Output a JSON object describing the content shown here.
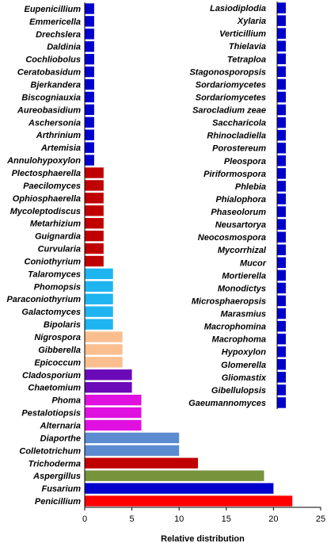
{
  "chart_data": {
    "type": "bar",
    "orientation": "horizontal",
    "xlabel": "Relative distribution",
    "xlim": [
      0,
      25
    ],
    "xticks": [
      0,
      5,
      10,
      15,
      20,
      25
    ],
    "grid": false,
    "main": [
      {
        "name": "Eupenicillium",
        "value": 1,
        "color": "#0000cc"
      },
      {
        "name": "Emmericella",
        "value": 1,
        "color": "#0000cc"
      },
      {
        "name": "Drechslera",
        "value": 1,
        "color": "#0000cc"
      },
      {
        "name": "Daldinia",
        "value": 1,
        "color": "#0000cc"
      },
      {
        "name": "Cochliobolus",
        "value": 1,
        "color": "#0000cc"
      },
      {
        "name": "Ceratobasidum",
        "value": 1,
        "color": "#0000cc"
      },
      {
        "name": "Bjerkandera",
        "value": 1,
        "color": "#0000cc"
      },
      {
        "name": "Biscogniauxia",
        "value": 1,
        "color": "#0000cc"
      },
      {
        "name": "Aureobasidium",
        "value": 1,
        "color": "#0000cc"
      },
      {
        "name": "Aschersonia",
        "value": 1,
        "color": "#0000cc"
      },
      {
        "name": "Arthrinium",
        "value": 1,
        "color": "#0000cc"
      },
      {
        "name": "Artemisia",
        "value": 1,
        "color": "#0000cc"
      },
      {
        "name": "Annulohypoxylon",
        "value": 1,
        "color": "#0000cc"
      },
      {
        "name": "Plectosphaerella",
        "value": 2,
        "color": "#c00000"
      },
      {
        "name": "Paecilomyces",
        "value": 2,
        "color": "#c00000"
      },
      {
        "name": "Ophiosphaerella",
        "value": 2,
        "color": "#c00000"
      },
      {
        "name": "Mycoleptodiscus",
        "value": 2,
        "color": "#c00000"
      },
      {
        "name": "Metarhizium",
        "value": 2,
        "color": "#c00000"
      },
      {
        "name": "Guignardia",
        "value": 2,
        "color": "#c00000"
      },
      {
        "name": "Curvularia",
        "value": 2,
        "color": "#c00000"
      },
      {
        "name": "Coniothyrium",
        "value": 2,
        "color": "#c00000"
      },
      {
        "name": "Talaromyces",
        "value": 3,
        "color": "#1eb4f0"
      },
      {
        "name": "Phomopsis",
        "value": 3,
        "color": "#1eb4f0"
      },
      {
        "name": "Paraconiothyrium",
        "value": 3,
        "color": "#1eb4f0"
      },
      {
        "name": "Galactomyces",
        "value": 3,
        "color": "#1eb4f0"
      },
      {
        "name": "Bipolaris",
        "value": 3,
        "color": "#1eb4f0"
      },
      {
        "name": "Nigrospora",
        "value": 4,
        "color": "#fbbf8f"
      },
      {
        "name": "Gibberella",
        "value": 4,
        "color": "#fbbf8f"
      },
      {
        "name": "Epicoccum",
        "value": 4,
        "color": "#fbbf8f"
      },
      {
        "name": "Cladosporium",
        "value": 5,
        "color": "#6a0ab8"
      },
      {
        "name": "Chaetomium",
        "value": 5,
        "color": "#6a0ab8"
      },
      {
        "name": "Phoma",
        "value": 6,
        "color": "#e010e0"
      },
      {
        "name": "Pestalotiopsis",
        "value": 6,
        "color": "#e010e0"
      },
      {
        "name": "Alternaria",
        "value": 6,
        "color": "#e010e0"
      },
      {
        "name": "Diaporthe",
        "value": 10,
        "color": "#5b8bd0"
      },
      {
        "name": "Colletotrichum",
        "value": 10,
        "color": "#5b8bd0"
      },
      {
        "name": "Trichoderma",
        "value": 12,
        "color": "#c00000"
      },
      {
        "name": "Aspergillus",
        "value": 19,
        "color": "#77933c"
      },
      {
        "name": "Fusarium",
        "value": 20,
        "color": "#0000cc"
      },
      {
        "name": "Penicillium",
        "value": 22,
        "color": "#ff0000"
      }
    ],
    "inset": [
      {
        "name": "Lasiodiplodia",
        "value": 1,
        "color": "#0000cc"
      },
      {
        "name": "Xylaria",
        "value": 1,
        "color": "#0000cc"
      },
      {
        "name": "Verticillium",
        "value": 1,
        "color": "#0000cc"
      },
      {
        "name": "Thielavia",
        "value": 1,
        "color": "#0000cc"
      },
      {
        "name": "Tetraploa",
        "value": 1,
        "color": "#0000cc"
      },
      {
        "name": "Stagonosporopsis",
        "value": 1,
        "color": "#0000cc"
      },
      {
        "name": "Sordariomycetes",
        "value": 1,
        "color": "#0000cc"
      },
      {
        "name": "Sordariomycetes",
        "value": 1,
        "color": "#0000cc"
      },
      {
        "name": "Sarocladium zeae",
        "value": 1,
        "color": "#0000cc"
      },
      {
        "name": "Saccharicola",
        "value": 1,
        "color": "#0000cc"
      },
      {
        "name": "Rhinocladiella",
        "value": 1,
        "color": "#0000cc"
      },
      {
        "name": "Porostereum",
        "value": 1,
        "color": "#0000cc"
      },
      {
        "name": "Pleospora",
        "value": 1,
        "color": "#0000cc"
      },
      {
        "name": "Piriformospora",
        "value": 1,
        "color": "#0000cc"
      },
      {
        "name": "Phlebia",
        "value": 1,
        "color": "#0000cc"
      },
      {
        "name": "Phialophora",
        "value": 1,
        "color": "#0000cc"
      },
      {
        "name": "Phaseolorum",
        "value": 1,
        "color": "#0000cc"
      },
      {
        "name": "Neusartorya",
        "value": 1,
        "color": "#0000cc"
      },
      {
        "name": "Neocosmospora",
        "value": 1,
        "color": "#0000cc"
      },
      {
        "name": "Mycorrhizal",
        "value": 1,
        "color": "#0000cc"
      },
      {
        "name": "Mucor",
        "value": 1,
        "color": "#0000cc"
      },
      {
        "name": "Mortierella",
        "value": 1,
        "color": "#0000cc"
      },
      {
        "name": "Monodictys",
        "value": 1,
        "color": "#0000cc"
      },
      {
        "name": "Microsphaeropsis",
        "value": 1,
        "color": "#0000cc"
      },
      {
        "name": "Marasmius",
        "value": 1,
        "color": "#0000cc"
      },
      {
        "name": "Macrophomina",
        "value": 1,
        "color": "#0000cc"
      },
      {
        "name": "Macrophoma",
        "value": 1,
        "color": "#0000cc"
      },
      {
        "name": "Hypoxylon",
        "value": 1,
        "color": "#0000cc"
      },
      {
        "name": "Glomerella",
        "value": 1,
        "color": "#0000cc"
      },
      {
        "name": "Gliomastix",
        "value": 1,
        "color": "#0000cc"
      },
      {
        "name": "Gibellulopsis",
        "value": 1,
        "color": "#0000cc"
      },
      {
        "name": "Gaeumannomyces",
        "value": 1,
        "color": "#0000cc"
      }
    ]
  }
}
